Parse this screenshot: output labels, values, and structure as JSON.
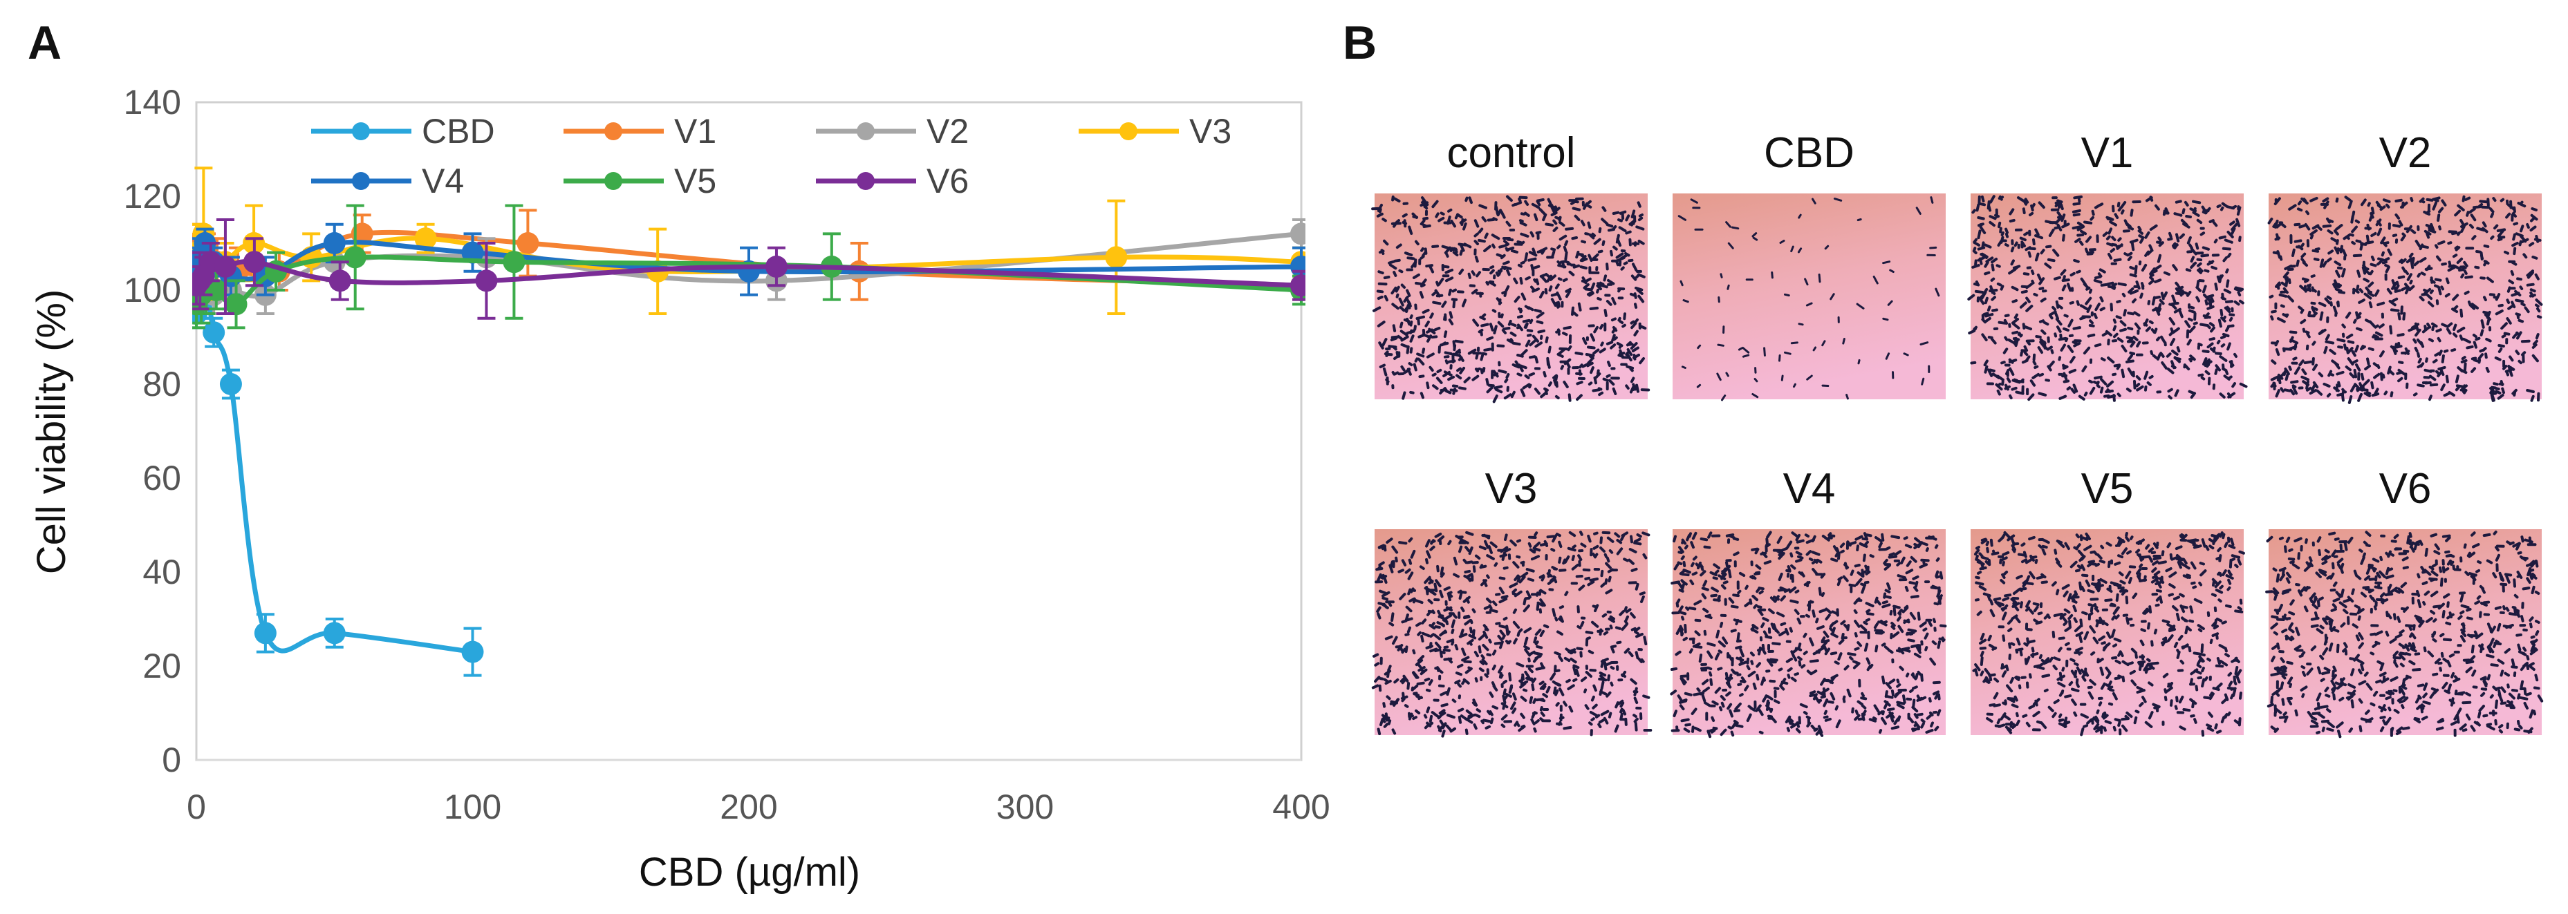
{
  "panels": {
    "a": {
      "letter": "A"
    },
    "b": {
      "letter": "B"
    }
  },
  "chart_data": {
    "type": "line",
    "title": "",
    "xlabel": "CBD (µg/ml)",
    "ylabel": "Cell viability (%)",
    "xlim": [
      0,
      400
    ],
    "ylim": [
      0,
      140
    ],
    "xticks": [
      0,
      100,
      200,
      300,
      400
    ],
    "yticks": [
      0,
      20,
      40,
      60,
      80,
      100,
      120,
      140
    ],
    "grid": false,
    "legend_position": "top-right",
    "series": [
      {
        "name": "CBD",
        "color": "#29a6dc",
        "points": [
          [
            0,
            95,
            3
          ],
          [
            1.6,
            98,
            4
          ],
          [
            3.1,
            104,
            5
          ],
          [
            6.3,
            91,
            3
          ],
          [
            12.5,
            80,
            3
          ],
          [
            25,
            27,
            4
          ],
          [
            50,
            27,
            3
          ],
          [
            100,
            23,
            5
          ]
        ]
      },
      {
        "name": "V1",
        "color": "#f58232",
        "points": [
          [
            0,
            110,
            4
          ],
          [
            1.9,
            106,
            5
          ],
          [
            3.75,
            108,
            4
          ],
          [
            7.5,
            106,
            5
          ],
          [
            15,
            104,
            5
          ],
          [
            30,
            104,
            4
          ],
          [
            60,
            112,
            4
          ],
          [
            120,
            110,
            7
          ],
          [
            240,
            104,
            6
          ],
          [
            400,
            101,
            3
          ]
        ]
      },
      {
        "name": "V2",
        "color": "#a6a6a6",
        "points": [
          [
            0,
            100,
            4
          ],
          [
            1.6,
            103,
            5
          ],
          [
            3.1,
            102,
            4
          ],
          [
            6.3,
            99,
            4
          ],
          [
            12.5,
            100,
            4
          ],
          [
            25,
            99,
            4
          ],
          [
            50,
            106,
            4
          ],
          [
            105,
            107,
            4
          ],
          [
            210,
            102,
            4
          ],
          [
            400,
            112,
            3
          ]
        ]
      },
      {
        "name": "V3",
        "color": "#ffc20e",
        "points": [
          [
            0,
            108,
            6
          ],
          [
            2.6,
            112,
            14
          ],
          [
            5.2,
            105,
            5
          ],
          [
            10.4,
            106,
            4
          ],
          [
            20.8,
            110,
            8
          ],
          [
            41.6,
            107,
            5
          ],
          [
            83,
            111,
            3
          ],
          [
            167,
            104,
            9
          ],
          [
            333,
            107,
            12
          ],
          [
            400,
            106,
            3
          ]
        ]
      },
      {
        "name": "V4",
        "color": "#1f72c4",
        "points": [
          [
            0,
            105,
            4
          ],
          [
            1.6,
            107,
            4
          ],
          [
            3.1,
            110,
            3
          ],
          [
            6.3,
            106,
            3
          ],
          [
            12.5,
            103,
            4
          ],
          [
            25,
            103,
            4
          ],
          [
            50,
            110,
            4
          ],
          [
            100,
            108,
            4
          ],
          [
            200,
            104,
            5
          ],
          [
            400,
            105,
            4
          ]
        ]
      },
      {
        "name": "V5",
        "color": "#3cab4a",
        "points": [
          [
            0,
            97,
            5
          ],
          [
            1.8,
            99,
            6
          ],
          [
            3.6,
            100,
            5
          ],
          [
            7.2,
            100,
            4
          ],
          [
            14.4,
            97,
            5
          ],
          [
            28.8,
            104,
            4
          ],
          [
            57.5,
            107,
            11
          ],
          [
            115,
            106,
            12
          ],
          [
            230,
            105,
            7
          ],
          [
            400,
            100,
            3
          ]
        ]
      },
      {
        "name": "V6",
        "color": "#7a2d96",
        "points": [
          [
            0,
            101,
            4
          ],
          [
            1.3,
            102,
            6
          ],
          [
            2.6,
            103,
            4
          ],
          [
            5.2,
            106,
            4
          ],
          [
            10.5,
            105,
            10
          ],
          [
            21,
            106,
            5
          ],
          [
            52,
            102,
            4
          ],
          [
            105,
            102,
            8
          ],
          [
            210,
            105,
            4
          ],
          [
            400,
            101,
            3
          ]
        ]
      }
    ]
  },
  "images": {
    "wells": [
      {
        "label": "control",
        "density": "high"
      },
      {
        "label": "CBD",
        "density": "low"
      },
      {
        "label": "V1",
        "density": "high"
      },
      {
        "label": "V2",
        "density": "high"
      },
      {
        "label": "V3",
        "density": "high"
      },
      {
        "label": "V4",
        "density": "high"
      },
      {
        "label": "V5",
        "density": "high"
      },
      {
        "label": "V6",
        "density": "high"
      }
    ]
  }
}
